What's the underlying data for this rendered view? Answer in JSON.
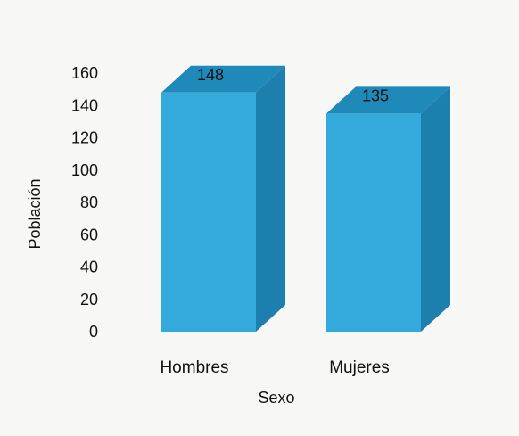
{
  "chart_data": {
    "type": "bar",
    "style": "3d-column",
    "categories": [
      "Hombres",
      "Mujeres"
    ],
    "values": [
      148,
      135
    ],
    "data_labels": [
      "148",
      "135"
    ],
    "xlabel": "Sexo",
    "ylabel": "Población",
    "ylim": [
      0,
      160
    ],
    "yticks": [
      0,
      20,
      40,
      60,
      80,
      100,
      120,
      140,
      160
    ],
    "grid": false,
    "legend": "none",
    "colors": {
      "front": "#34A9DC",
      "top": "#1F8AB9",
      "side": "#1D7FAE",
      "background": "#f7f7f5"
    }
  }
}
